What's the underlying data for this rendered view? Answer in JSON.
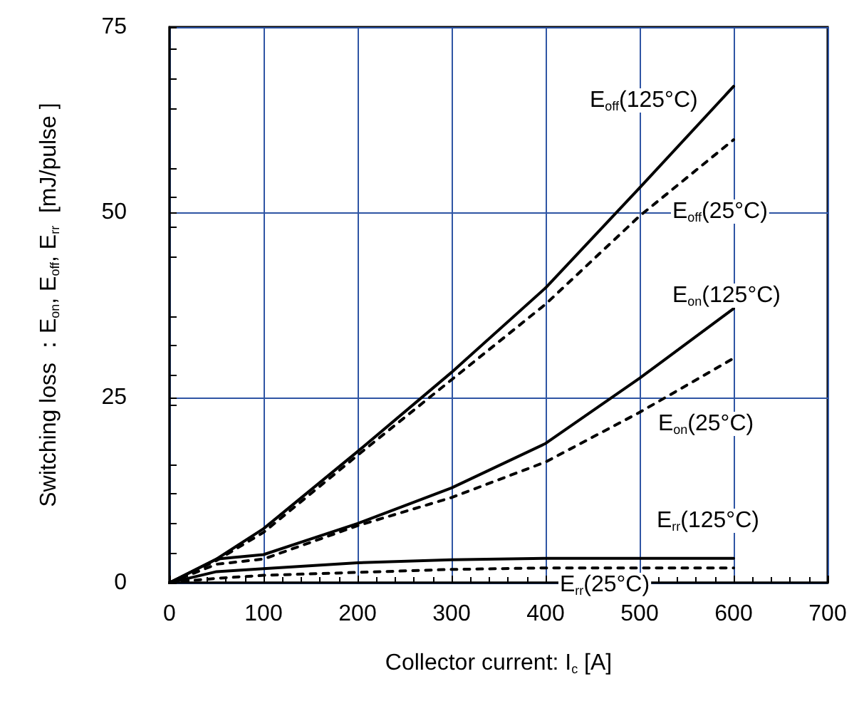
{
  "chart_data": {
    "type": "line",
    "xlabel": "Collector current: I$_{c}$ [A]",
    "ylabel": "Switching loss ：E$_{on}$, E$_{off}$, E$_{rr}$  [mJ/pulse ]",
    "x": [
      0,
      50,
      100,
      200,
      300,
      400,
      500,
      600
    ],
    "series": [
      {
        "color": "#000000",
        "line_style": "solid",
        "values": [
          0,
          3.2,
          7.3,
          17.7,
          28.4,
          39.8,
          53.3,
          67.0
        ]
      },
      {
        "color": "#000000",
        "line_style": "dashed",
        "values": [
          0,
          3.0,
          6.8,
          17.2,
          27.4,
          37.6,
          49.5,
          59.8
        ]
      },
      {
        "color": "#000000",
        "line_style": "solid",
        "values": [
          0,
          3.2,
          3.8,
          8.0,
          12.8,
          18.8,
          27.6,
          37.0
        ]
      },
      {
        "color": "#000000",
        "line_style": "dashed",
        "values": [
          0,
          2.5,
          3.2,
          7.7,
          11.5,
          16.3,
          23.0,
          30.3
        ]
      },
      {
        "color": "#000000",
        "line_style": "solid",
        "values": [
          0,
          1.5,
          1.9,
          2.7,
          3.1,
          3.3,
          3.3,
          3.3
        ]
      },
      {
        "color": "#000000",
        "line_style": "dashed",
        "values": [
          0,
          0.6,
          1.0,
          1.4,
          1.8,
          2.0,
          2.0,
          2.0
        ]
      }
    ],
    "xlim": [
      0,
      700
    ],
    "xticks": [
      0,
      100,
      200,
      300,
      400,
      500,
      600,
      700
    ],
    "ylim": [
      0,
      75
    ],
    "yticks": [
      0,
      25,
      50,
      75
    ],
    "grid": true,
    "marker": "none",
    "annotations": [
      "E$_{off}$(125°C)",
      "E$_{off}$(25°C)",
      "E$_{on}$(125°C)",
      "E$_{on}$(25°C)",
      "E$_{rr}$(125°C)",
      "E$_{rr}$(25°C)"
    ]
  }
}
